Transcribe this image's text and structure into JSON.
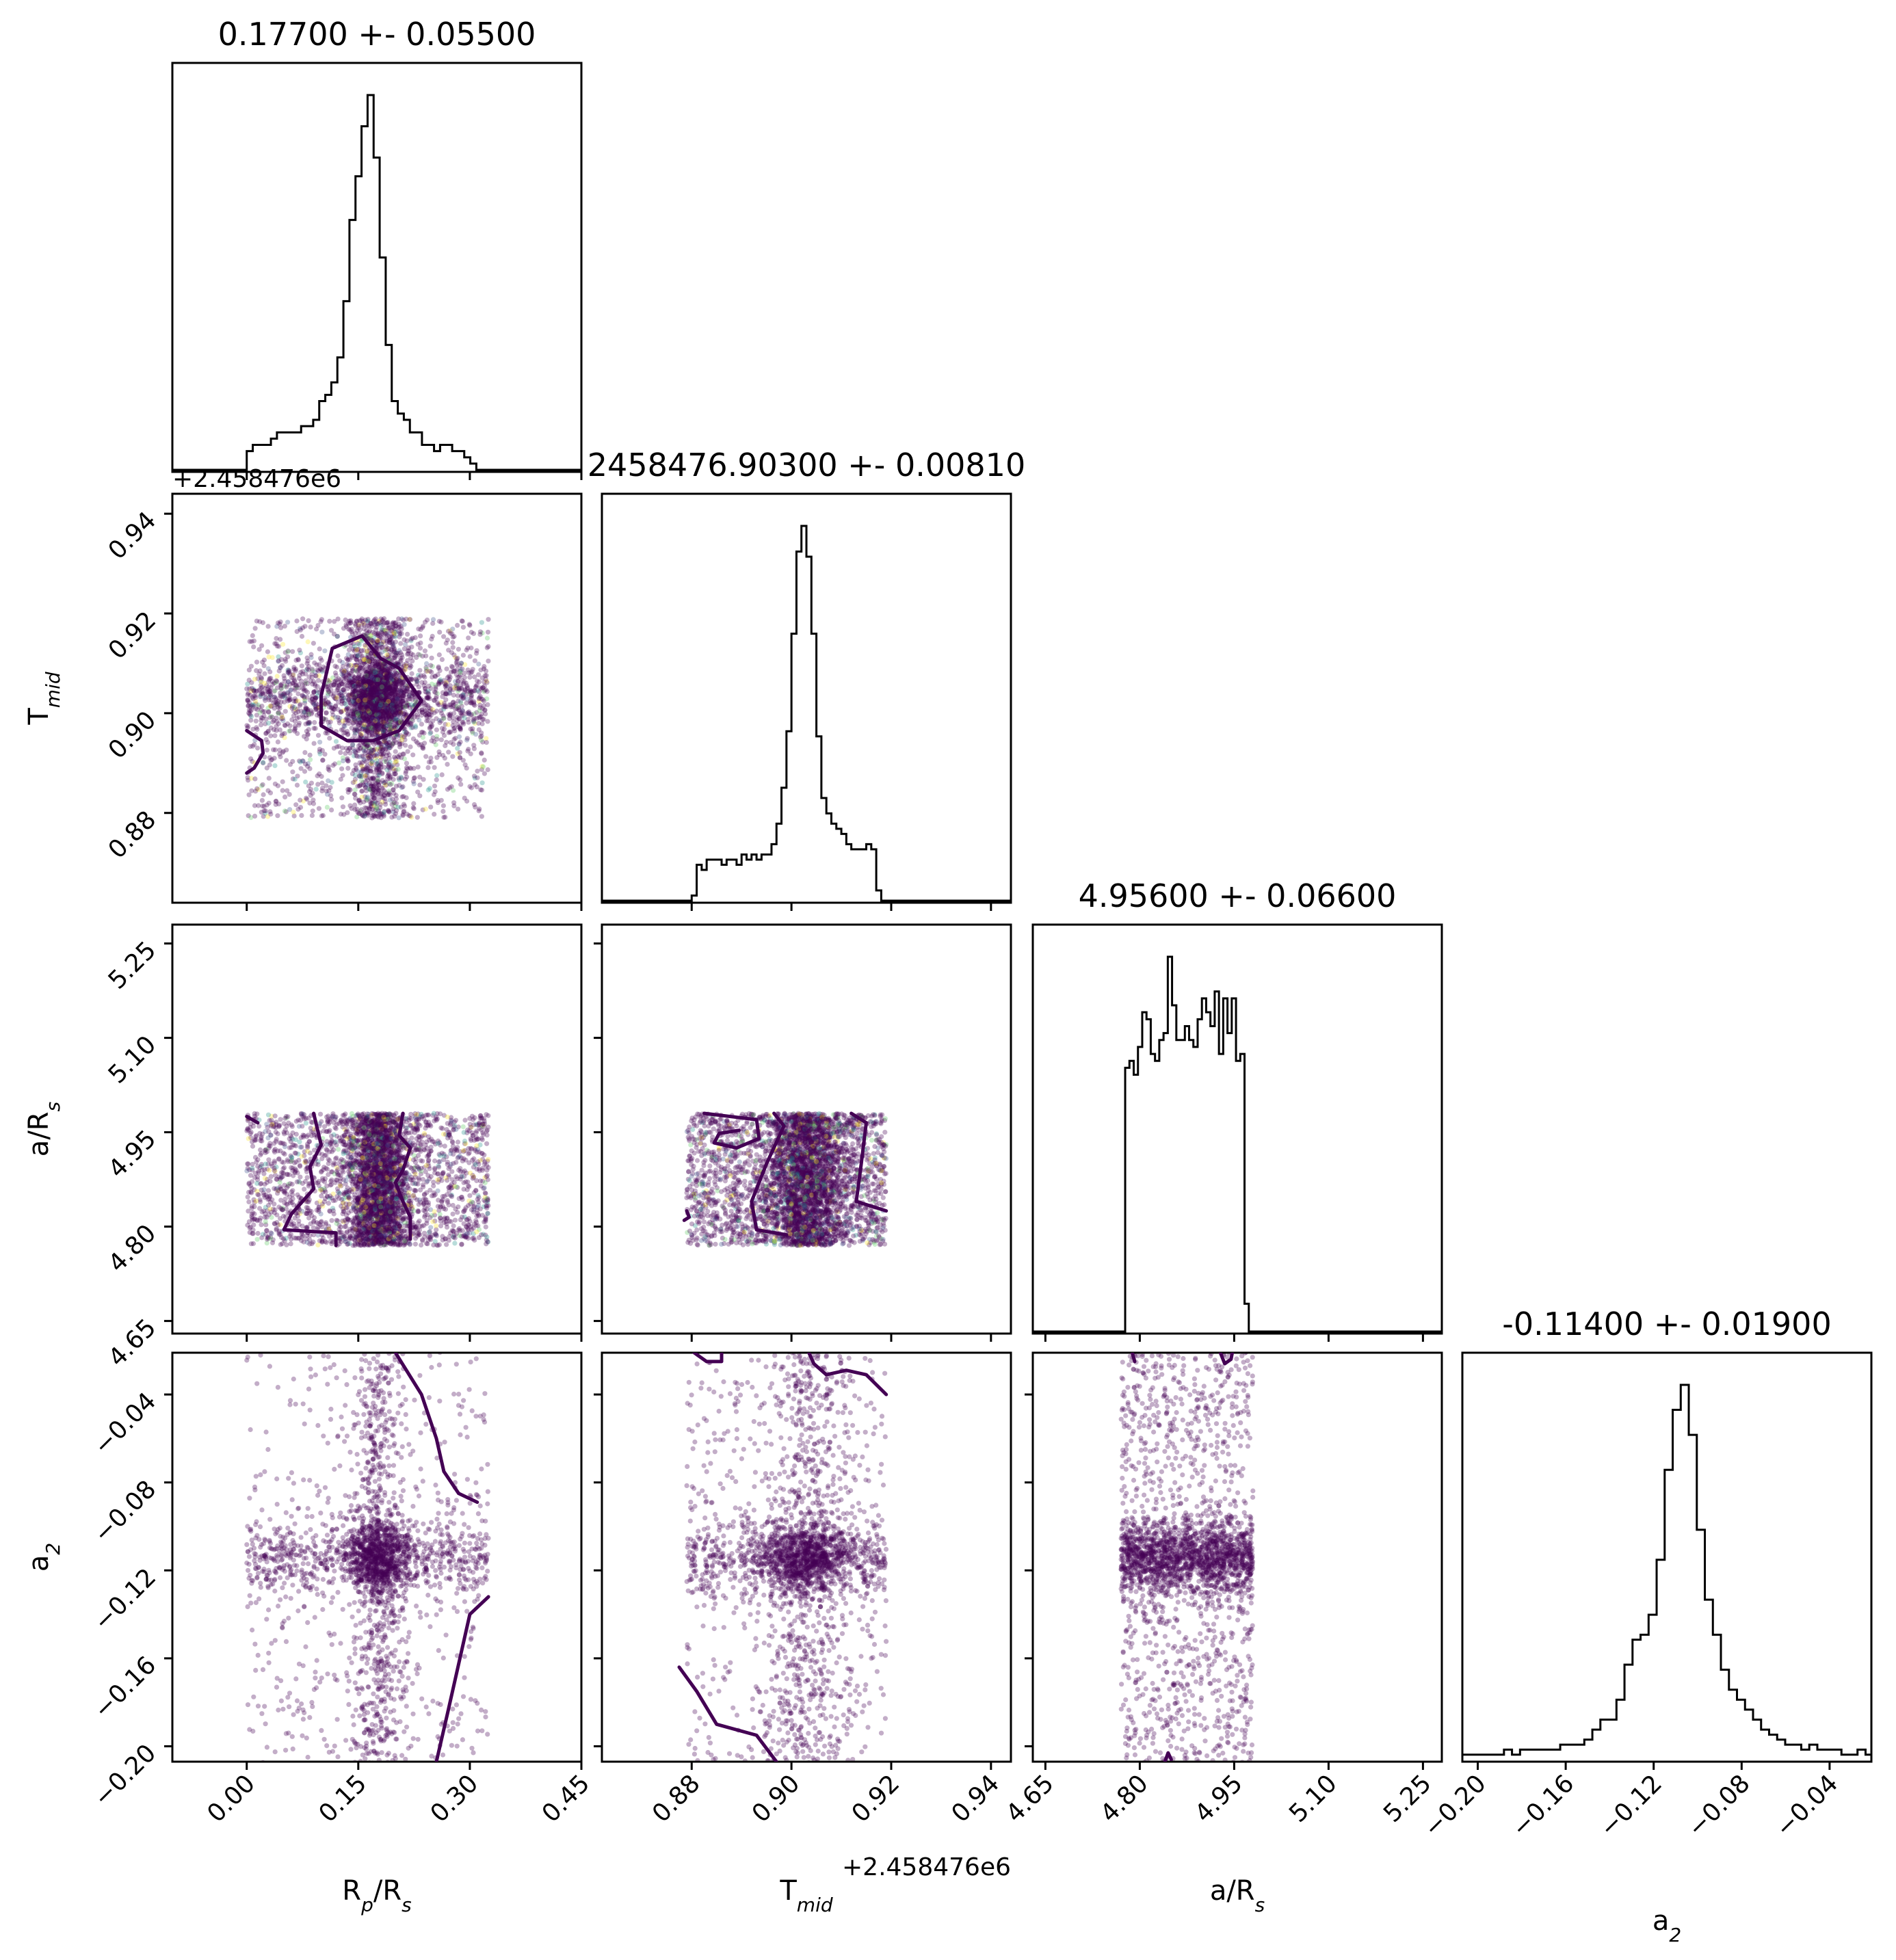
{
  "chart_data": {
    "type": "scatter",
    "style": {
      "point_color": "#440154",
      "minor_point_colors": [
        "#440154",
        "#3b528b",
        "#21918c",
        "#5ec962",
        "#fde725"
      ],
      "contour_color": "#440154",
      "histogram_color": "#000000"
    },
    "parameters": [
      {
        "key": "rp",
        "label": "Rₚ/Rₛ",
        "label_main": "R",
        "label_sub": "p",
        "label_mid": "/R",
        "label_sub2": "s",
        "range": [
          -0.1,
          0.45
        ],
        "ticks": [
          0.0,
          0.15,
          0.3,
          0.45
        ],
        "tick_labels": [
          "0.00",
          "0.15",
          "0.30",
          "0.45"
        ],
        "title": "0.17700 +- 0.05500",
        "median": 0.177,
        "sigma": 0.055,
        "uniform_range": [
          0.0,
          0.325
        ],
        "peak_sigma": 0.02
      },
      {
        "key": "tmid",
        "label": "T_mid",
        "label_main": "T",
        "label_sub": "mid",
        "label_mid": "",
        "label_sub2": "",
        "range": [
          0.862,
          0.944
        ],
        "ticks": [
          0.88,
          0.9,
          0.92,
          0.94
        ],
        "tick_labels": [
          "0.88",
          "0.90",
          "0.92",
          "0.94"
        ],
        "offset_text": "+2.458476e6",
        "title": "2458476.90300 +- 0.00810",
        "median": 0.903,
        "sigma": 0.0081,
        "uniform_range": [
          0.879,
          0.919
        ],
        "peak_sigma": 0.004
      },
      {
        "key": "ars",
        "label": "a/Rₛ",
        "label_main": "a/R",
        "label_sub": "s",
        "label_mid": "",
        "label_sub2": "",
        "range": [
          4.63,
          5.28
        ],
        "ticks": [
          4.65,
          4.8,
          4.95,
          5.1,
          5.25
        ],
        "tick_labels": [
          "4.65",
          "4.80",
          "4.95",
          "5.10",
          "5.25"
        ],
        "title": "4.95600 +- 0.06600",
        "median": 4.956,
        "sigma": 0.066,
        "uniform_range": [
          4.77,
          4.98
        ],
        "peak_sigma": 0.0
      },
      {
        "key": "a2",
        "label": "a₂",
        "label_main": "a",
        "label_sub": "2",
        "label_mid": "",
        "label_sub2": "",
        "range": [
          -0.207,
          -0.021
        ],
        "ticks": [
          -0.2,
          -0.16,
          -0.12,
          -0.08,
          -0.04
        ],
        "tick_labels": [
          "−0.20",
          "−0.16",
          "−0.12",
          "−0.08",
          "−0.04"
        ],
        "title": "-0.11400 +- 0.01900",
        "median": -0.114,
        "sigma": 0.019,
        "uniform_range": [
          -0.21,
          -0.02
        ],
        "peak_sigma": 0.0085
      }
    ],
    "histograms": [
      {
        "param": "rp",
        "range": [
          0.0,
          0.325
        ],
        "counts": [
          3,
          4,
          4,
          4,
          5,
          6,
          6,
          6,
          6,
          7,
          7,
          8,
          11,
          12,
          14,
          18,
          27,
          40,
          47,
          55,
          60,
          50,
          34,
          20,
          11,
          9,
          8,
          6,
          6,
          4,
          4,
          3,
          4,
          4,
          3,
          3,
          2,
          1,
          0,
          0
        ]
      },
      {
        "param": "tmid",
        "range": [
          0.879,
          0.919
        ],
        "counts": [
          0,
          1,
          7,
          6,
          8,
          8,
          8,
          7,
          8,
          8,
          7,
          9,
          8,
          9,
          8,
          9,
          9,
          11,
          15,
          22,
          33,
          52,
          68,
          73,
          67,
          52,
          32,
          20,
          17,
          15,
          14,
          13,
          11,
          10,
          10,
          10,
          11,
          10,
          2,
          0
        ]
      },
      {
        "param": "ars",
        "range": [
          4.77,
          4.98
        ],
        "counts": [
          0,
          38,
          39,
          37,
          41,
          46,
          45,
          40,
          39,
          42,
          43,
          54,
          47,
          42,
          42,
          44,
          42,
          41,
          45,
          48,
          46,
          44,
          49,
          40,
          48,
          43,
          48,
          39,
          40,
          4,
          0
        ]
      },
      {
        "param": "a2",
        "range": [
          -0.21,
          -0.02
        ],
        "counts": [
          1,
          1,
          1,
          1,
          1,
          1,
          2,
          1,
          2,
          2,
          2,
          2,
          2,
          3,
          3,
          3,
          4,
          6,
          8,
          8,
          12,
          19,
          24,
          25,
          29,
          40,
          58,
          70,
          75,
          65,
          46,
          32,
          25,
          18,
          14,
          12,
          10,
          8,
          6,
          5,
          4,
          3,
          3,
          2,
          3,
          2,
          2,
          2,
          1,
          1,
          2,
          1
        ]
      }
    ],
    "scatter_panels": [
      {
        "x": "rp",
        "y": "tmid",
        "n_points": 4200,
        "multicolor": true
      },
      {
        "x": "rp",
        "y": "ars",
        "n_points": 4200,
        "multicolor": true
      },
      {
        "x": "tmid",
        "y": "ars",
        "n_points": 4200,
        "multicolor": true
      },
      {
        "x": "rp",
        "y": "a2",
        "n_points": 2600,
        "multicolor": false
      },
      {
        "x": "tmid",
        "y": "a2",
        "n_points": 2600,
        "multicolor": false
      },
      {
        "x": "ars",
        "y": "a2",
        "n_points": 2600,
        "multicolor": false
      }
    ],
    "contours": [
      {
        "x": "rp",
        "y": "tmid",
        "paths": [
          [
            [
              0.1,
              0.9035
            ],
            [
              0.115,
              0.913
            ],
            [
              0.155,
              0.9155
            ],
            [
              0.18,
              0.911
            ],
            [
              0.205,
              0.909
            ],
            [
              0.235,
              0.9025
            ],
            [
              0.205,
              0.8965
            ],
            [
              0.17,
              0.8945
            ],
            [
              0.135,
              0.8945
            ],
            [
              0.1,
              0.8975
            ],
            [
              0.1,
              0.9035
            ]
          ],
          [
            [
              0.0,
              0.8965
            ],
            [
              0.02,
              0.8945
            ],
            [
              0.022,
              0.892
            ],
            [
              0.01,
              0.889
            ],
            [
              0.0,
              0.888
            ]
          ]
        ]
      },
      {
        "x": "rp",
        "y": "ars",
        "paths": [
          [
            [
              0.0,
              4.975
            ],
            [
              0.015,
              4.965
            ]
          ],
          [
            [
              0.09,
              4.98
            ],
            [
              0.1,
              4.93
            ],
            [
              0.085,
              4.895
            ],
            [
              0.09,
              4.86
            ],
            [
              0.06,
              4.82
            ],
            [
              0.05,
              4.795
            ],
            [
              0.12,
              4.79
            ],
            [
              0.12,
              4.77
            ]
          ],
          [
            [
              0.21,
              4.98
            ],
            [
              0.205,
              4.945
            ],
            [
              0.22,
              4.925
            ],
            [
              0.21,
              4.89
            ],
            [
              0.2,
              4.87
            ],
            [
              0.21,
              4.84
            ],
            [
              0.22,
              4.815
            ],
            [
              0.22,
              4.78
            ]
          ]
        ]
      },
      {
        "x": "tmid",
        "y": "ars",
        "paths": [
          [
            [
              0.8825,
              4.98
            ],
            [
              0.893,
              4.97
            ],
            [
              0.8935,
              4.94
            ],
            [
              0.889,
              4.925
            ],
            [
              0.8845,
              4.933
            ],
            [
              0.8855,
              4.948
            ],
            [
              0.8895,
              4.953
            ]
          ],
          [
            [
              0.879,
              4.825
            ],
            [
              0.8795,
              4.815
            ],
            [
              0.8785,
              4.81
            ]
          ],
          [
            [
              0.8965,
              4.98
            ],
            [
              0.8985,
              4.96
            ],
            [
              0.895,
              4.9
            ],
            [
              0.892,
              4.84
            ],
            [
              0.893,
              4.795
            ],
            [
              0.899,
              4.787
            ]
          ],
          [
            [
              0.912,
              4.98
            ],
            [
              0.915,
              4.965
            ],
            [
              0.914,
              4.9
            ],
            [
              0.913,
              4.84
            ],
            [
              0.919,
              4.825
            ]
          ]
        ]
      },
      {
        "x": "rp",
        "y": "a2",
        "paths": [
          [
            [
              0.2,
              -0.021
            ],
            [
              0.235,
              -0.04
            ],
            [
              0.255,
              -0.06
            ],
            [
              0.265,
              -0.075
            ],
            [
              0.285,
              -0.085
            ],
            [
              0.31,
              -0.089
            ]
          ],
          [
            [
              0.325,
              -0.132
            ],
            [
              0.3,
              -0.14
            ],
            [
              0.28,
              -0.17
            ],
            [
              0.27,
              -0.185
            ],
            [
              0.255,
              -0.207
            ]
          ]
        ]
      },
      {
        "x": "tmid",
        "y": "a2",
        "paths": [
          [
            [
              0.8805,
              -0.021
            ],
            [
              0.883,
              -0.025
            ],
            [
              0.886,
              -0.025
            ],
            [
              0.886,
              -0.021
            ]
          ],
          [
            [
              0.9035,
              -0.021
            ],
            [
              0.9045,
              -0.026
            ],
            [
              0.907,
              -0.031
            ],
            [
              0.911,
              -0.029
            ],
            [
              0.915,
              -0.031
            ],
            [
              0.919,
              -0.04
            ]
          ],
          [
            [
              0.8775,
              -0.164
            ],
            [
              0.881,
              -0.175
            ],
            [
              0.885,
              -0.19
            ],
            [
              0.893,
              -0.195
            ],
            [
              0.897,
              -0.207
            ]
          ]
        ]
      },
      {
        "x": "ars",
        "y": "a2",
        "paths": [
          [
            [
              4.788,
              -0.021
            ],
            [
              4.792,
              -0.025
            ]
          ],
          [
            [
              4.928,
              -0.021
            ],
            [
              4.935,
              -0.026
            ],
            [
              4.945,
              -0.024
            ],
            [
              4.947,
              -0.021
            ]
          ],
          [
            [
              4.84,
              -0.207
            ],
            [
              4.845,
              -0.203
            ],
            [
              4.85,
              -0.206
            ]
          ]
        ]
      }
    ]
  }
}
